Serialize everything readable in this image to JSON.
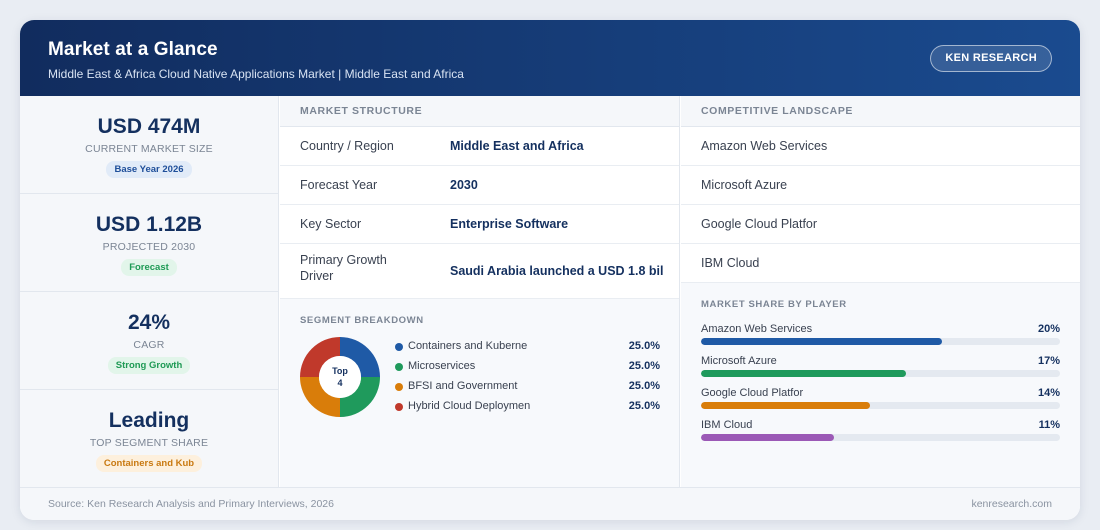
{
  "header": {
    "title": "Market at a Glance",
    "subtitle": "Middle East & Africa Cloud Native Applications Market | Middle East and Africa",
    "brand_label": "KEN RESEARCH"
  },
  "kpis": [
    {
      "value": "USD 474M",
      "label": "CURRENT MARKET SIZE",
      "badge": "Base Year 2026",
      "badge_color": "#1f4f9a"
    },
    {
      "value": "USD 1.12B",
      "label": "PROJECTED 2030",
      "badge": "Forecast",
      "badge_color": "#1f9a55"
    },
    {
      "value": "24%",
      "label": "CAGR",
      "badge": "Strong Growth",
      "badge_color": "#1f9a55"
    },
    {
      "value": "Leading",
      "label": "TOP SEGMENT SHARE",
      "badge": "Containers and Kub",
      "badge_color": "#c97a12"
    }
  ],
  "market_structure": {
    "heading": "MARKET STRUCTURE",
    "rows": [
      {
        "key": "Country / Region",
        "value": "Middle East and Africa"
      },
      {
        "key": "Forecast Year",
        "value": "2030"
      },
      {
        "key": "Key Sector",
        "value": "Enterprise Software"
      },
      {
        "key": "Primary Growth Driver",
        "value": "Saudi Arabia launched a USD 1.8 bil"
      }
    ]
  },
  "segment_breakdown": {
    "heading": "SEGMENT BREAKDOWN",
    "donut_label_line1": "Top",
    "donut_label_line2": "4",
    "items": [
      {
        "name": "Containers and Kuberne",
        "pct": "25.0%",
        "value": 25.0,
        "color": "#1f5aa6"
      },
      {
        "name": "Microservices",
        "pct": "25.0%",
        "value": 25.0,
        "color": "#1f9a5c"
      },
      {
        "name": "BFSI and Government",
        "pct": "25.0%",
        "value": 25.0,
        "color": "#d97d0a"
      },
      {
        "name": "Hybrid Cloud Deploymen",
        "pct": "25.0%",
        "value": 25.0,
        "color": "#c0392b"
      }
    ]
  },
  "competitive_landscape": {
    "heading": "COMPETITIVE LANDSCAPE",
    "players": [
      "Amazon Web Services",
      "Microsoft Azure",
      "Google Cloud Platfor",
      "IBM Cloud"
    ]
  },
  "market_share": {
    "heading": "MARKET SHARE BY PLAYER",
    "items": [
      {
        "name": "Amazon Web Services",
        "pct": "20%",
        "fill": 0.67,
        "color": "#1f5aa6"
      },
      {
        "name": "Microsoft Azure",
        "pct": "17%",
        "fill": 0.57,
        "color": "#1f9a5c"
      },
      {
        "name": "Google Cloud Platfor",
        "pct": "14%",
        "fill": 0.47,
        "color": "#d97d0a"
      },
      {
        "name": "IBM Cloud",
        "pct": "11%",
        "fill": 0.37,
        "color": "#9b59b6"
      }
    ]
  },
  "footer": {
    "source": "Source: Ken Research Analysis and Primary Interviews, 2026",
    "site": "kenresearch.com"
  }
}
